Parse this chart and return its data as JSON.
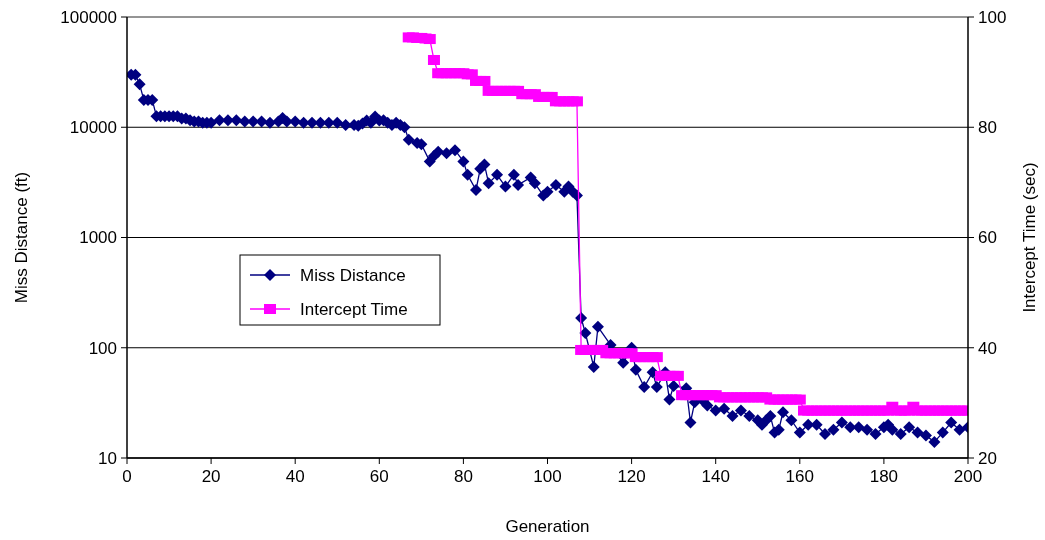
{
  "chart_data": {
    "type": "line",
    "xlabel": "Generation",
    "ylabel": "Miss Distance (ft)",
    "y2label": "Intercept Time (sec)",
    "xlim": [
      0,
      200
    ],
    "xticks": [
      0,
      20,
      40,
      60,
      80,
      100,
      120,
      140,
      160,
      180,
      200
    ],
    "ylim": [
      10,
      100000
    ],
    "yticks": [
      10,
      100,
      1000,
      10000,
      100000
    ],
    "y2lim": [
      20,
      100
    ],
    "y2ticks": [
      20,
      40,
      60,
      80,
      100
    ],
    "log": "y",
    "grid": "y",
    "legend": "left",
    "series": [
      {
        "name": "Miss Distance",
        "color": "#000080",
        "marker": "diamond",
        "x": [
          1,
          2,
          3,
          4,
          5,
          6,
          7,
          8,
          9,
          10,
          11,
          12,
          13,
          14,
          15,
          16,
          17,
          18,
          19,
          20,
          22,
          24,
          26,
          28,
          30,
          32,
          34,
          36,
          37,
          38,
          40,
          42,
          44,
          46,
          48,
          50,
          52,
          54,
          55,
          56,
          57,
          58,
          59,
          60,
          61,
          62,
          63,
          64,
          65,
          66,
          67,
          69,
          70,
          72,
          73,
          74,
          76,
          78,
          80,
          81,
          83,
          84,
          85,
          86,
          88,
          90,
          92,
          93,
          96,
          97,
          99,
          100,
          102,
          104,
          105,
          106,
          107,
          108,
          109,
          111,
          112,
          115,
          118,
          120,
          121,
          123,
          125,
          126,
          128,
          129,
          130,
          133,
          134,
          135,
          137,
          138,
          140,
          142,
          144,
          146,
          148,
          150,
          151,
          152,
          153,
          154,
          155,
          156,
          158,
          160,
          162,
          164,
          166,
          168,
          170,
          172,
          174,
          176,
          178,
          180,
          181,
          182,
          184,
          186,
          188,
          190,
          192,
          194,
          196,
          198,
          200
        ],
        "values": [
          30000,
          30000,
          24500,
          17700,
          17700,
          17700,
          12600,
          12600,
          12600,
          12600,
          12600,
          12600,
          12000,
          12000,
          11600,
          11300,
          11300,
          11000,
          11000,
          11000,
          11600,
          11600,
          11600,
          11300,
          11300,
          11300,
          11000,
          11300,
          12100,
          11300,
          11300,
          11000,
          11000,
          11000,
          11000,
          11000,
          10500,
          10500,
          10300,
          10800,
          11500,
          11000,
          12500,
          11500,
          11600,
          11000,
          10500,
          11000,
          10500,
          10000,
          7700,
          7200,
          7000,
          4900,
          5500,
          6000,
          5800,
          6200,
          4900,
          3700,
          2700,
          4200,
          4600,
          3100,
          3700,
          2900,
          3700,
          3000,
          3500,
          3100,
          2400,
          2600,
          3000,
          2600,
          2900,
          2600,
          2400,
          186,
          136,
          67,
          155,
          106,
          73,
          100,
          63,
          44,
          60,
          44,
          60,
          34,
          45,
          43,
          21,
          32,
          33,
          30,
          27,
          28,
          24,
          27,
          24,
          22,
          20,
          22,
          24,
          17,
          18,
          26,
          22,
          17,
          20,
          20,
          16.5,
          18,
          21,
          19,
          19,
          18,
          16.5,
          19,
          20,
          18,
          16.5,
          19,
          17,
          16,
          14,
          17,
          21,
          18,
          19
        ]
      },
      {
        "name": "Intercept Time",
        "color": "#ff00ff",
        "marker": "square",
        "axis": "y2",
        "x": [
          67,
          68,
          69,
          70,
          71,
          72,
          73,
          74,
          75,
          76,
          77,
          78,
          79,
          80,
          81,
          82,
          83,
          84,
          85,
          86,
          87,
          88,
          89,
          90,
          91,
          92,
          93,
          94,
          95,
          96,
          97,
          98,
          99,
          100,
          101,
          102,
          103,
          104,
          105,
          106,
          107,
          108,
          109,
          110,
          111,
          112,
          113,
          114,
          115,
          116,
          117,
          118,
          119,
          120,
          121,
          122,
          123,
          124,
          125,
          126,
          127,
          128,
          129,
          130,
          131,
          132,
          133,
          134,
          135,
          136,
          137,
          138,
          139,
          140,
          141,
          142,
          143,
          144,
          145,
          146,
          147,
          148,
          149,
          150,
          151,
          152,
          153,
          154,
          155,
          156,
          157,
          158,
          159,
          160,
          161,
          162,
          163,
          164,
          165,
          166,
          167,
          168,
          169,
          170,
          171,
          172,
          173,
          174,
          175,
          176,
          177,
          178,
          179,
          180,
          181,
          182,
          183,
          184,
          185,
          186,
          187,
          188,
          189,
          190,
          191,
          192,
          193,
          194,
          195,
          196,
          197,
          198,
          199,
          200
        ],
        "values": [
          96.3,
          96.3,
          96.2,
          96.2,
          96.1,
          96,
          92.2,
          89.8,
          89.8,
          89.8,
          89.8,
          89.8,
          89.8,
          89.8,
          89.6,
          89.6,
          88.4,
          88.4,
          88.4,
          86.6,
          86.6,
          86.6,
          86.6,
          86.6,
          86.6,
          86.6,
          86.6,
          86,
          86,
          86,
          86,
          85.5,
          85.5,
          85.5,
          85.5,
          84.7,
          84.7,
          84.7,
          84.7,
          84.7,
          84.7,
          39.6,
          39.6,
          39.6,
          39.6,
          39.6,
          39.6,
          39,
          39,
          39,
          39,
          39,
          39,
          39,
          38.3,
          38.3,
          38.3,
          38.3,
          38.3,
          38.3,
          34.9,
          34.9,
          34.9,
          34.9,
          34.9,
          31.4,
          31.4,
          31.4,
          31.4,
          31.4,
          31.4,
          31.4,
          31.4,
          31.4,
          31,
          31,
          31,
          31,
          31,
          31,
          31,
          31,
          31,
          31,
          31,
          31,
          30.6,
          30.6,
          30.6,
          30.6,
          30.6,
          30.6,
          30.6,
          30.6,
          28.6,
          28.6,
          28.6,
          28.6,
          28.6,
          28.6,
          28.6,
          28.6,
          28.6,
          28.6,
          28.6,
          28.6,
          28.6,
          28.6,
          28.6,
          28.6,
          28.6,
          28.6,
          28.6,
          28.6,
          28.6,
          29.3,
          28.6,
          28.6,
          28.6,
          28.6,
          29.3,
          28.6,
          28.6,
          28.6,
          28.6,
          28.6,
          28.6,
          28.6,
          28.6,
          28.6,
          28.6,
          28.6,
          28.6,
          28.6
        ]
      }
    ]
  }
}
